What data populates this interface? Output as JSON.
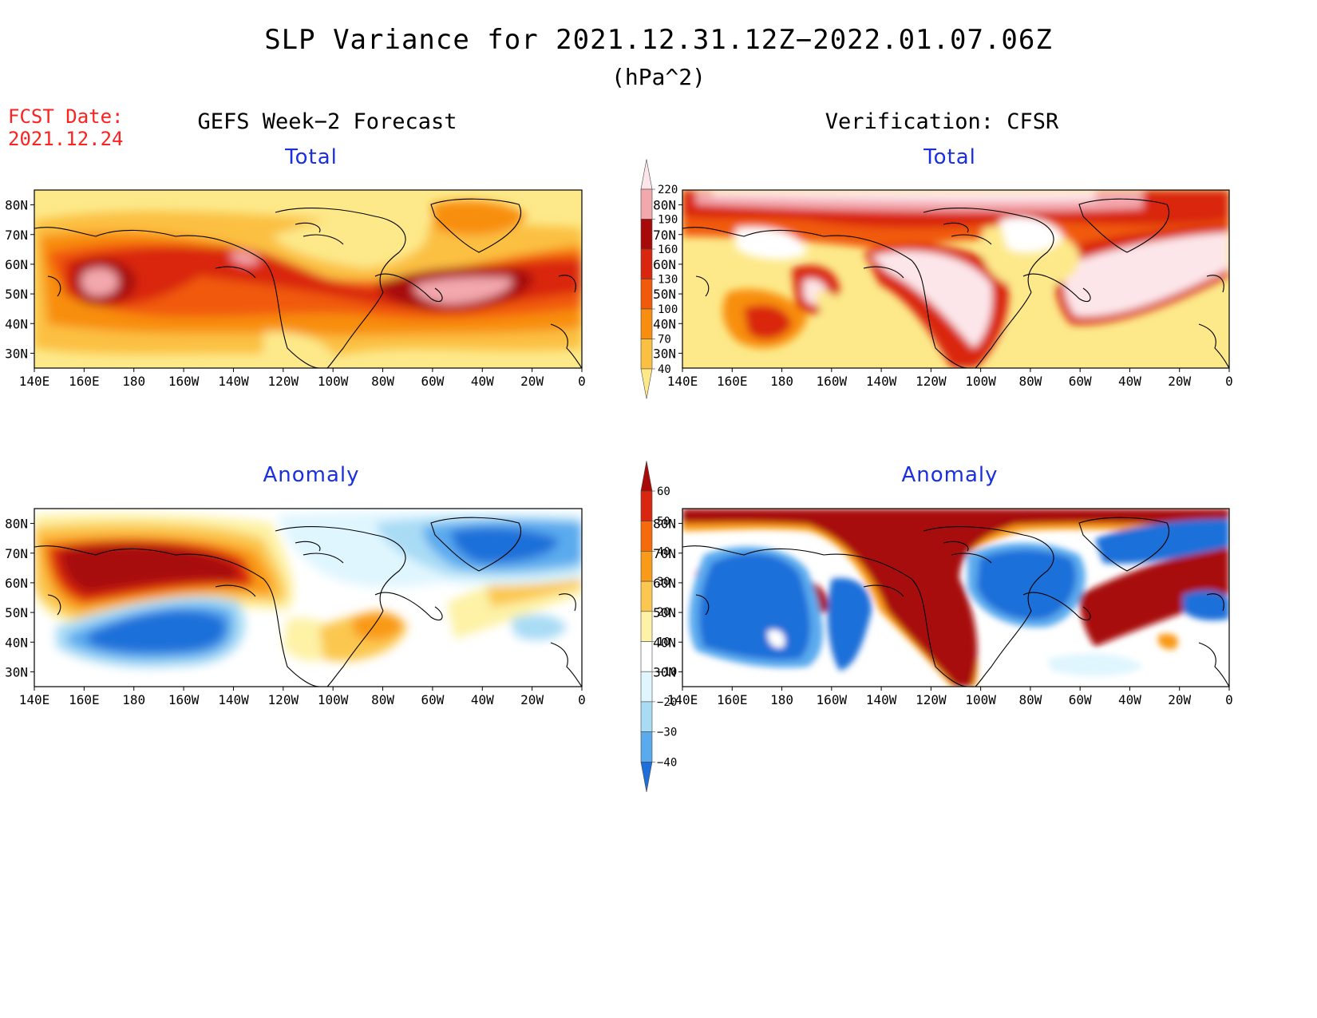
{
  "title": "SLP Variance for 2021.12.31.12Z−2022.01.07.06Z",
  "units": "(hPa^2)",
  "fcst_date": {
    "label": "FCST Date:",
    "value": "2021.12.24"
  },
  "left_header": "GEFS Week−2 Forecast",
  "right_header": "Verification: CFSR",
  "panels": {
    "fcst_total": {
      "subtitle": "Total"
    },
    "ver_total": {
      "subtitle": "Total"
    },
    "fcst_anom": {
      "subtitle": "Anomaly"
    },
    "ver_anom": {
      "subtitle": "Anomaly"
    }
  },
  "axes": {
    "lon_labels": [
      "140E",
      "160E",
      "180",
      "160W",
      "140W",
      "120W",
      "100W",
      "80W",
      "60W",
      "40W",
      "20W",
      "0"
    ],
    "lat_labels": [
      "80N",
      "70N",
      "60N",
      "50N",
      "40N",
      "30N"
    ]
  },
  "total_colorbar": {
    "levels": [
      "40",
      "70",
      "100",
      "130",
      "160",
      "190",
      "220"
    ],
    "colors": [
      "#fde98a",
      "#fbc042",
      "#f88e10",
      "#f15a0a",
      "#d9260f",
      "#a80a0a",
      "#f3a8ad",
      "#fde6ea"
    ]
  },
  "anomaly_colorbar": {
    "levels": [
      "60",
      "50",
      "40",
      "30",
      "20",
      "10",
      "−10",
      "−20",
      "−30",
      "−40"
    ],
    "colors": [
      "#a80a0a",
      "#d9260f",
      "#f56b0c",
      "#f99a18",
      "#fbc750",
      "#fdf2a6",
      "#ffffff",
      "#e0f6fe",
      "#a9dbf5",
      "#5aaaee",
      "#1e6fd9"
    ]
  },
  "chart_data": [
    {
      "type": "heatmap",
      "title": "Total",
      "subtitle": "GEFS Week−2 Forecast",
      "xlim": [
        "140E",
        "0"
      ],
      "ylim": [
        "25N",
        "85N"
      ],
      "features": [
        {
          "name": "West Pacific maximum",
          "lon": "168E",
          "lat": "53N",
          "value": ">190"
        },
        {
          "name": "Gulf of Alaska band",
          "lon": "150W",
          "lat": "58N",
          "value": "160–190"
        },
        {
          "name": "Newfoundland/Atlantic maximum",
          "lon": "60W",
          "lat": "50N",
          "value": ">190"
        },
        {
          "name": "Greenland minimum",
          "lon": "45W",
          "lat": "75N",
          "value": "40–70"
        }
      ]
    },
    {
      "type": "heatmap",
      "title": "Total",
      "subtitle": "Verification: CFSR",
      "xlim": [
        "140E",
        "0"
      ],
      "ylim": [
        "25N",
        "85N"
      ],
      "features": [
        {
          "name": "Arctic maximum",
          "lon": "110W",
          "lat": "83N",
          "value": ">220"
        },
        {
          "name": "Western North America maximum",
          "lon": "118W",
          "lat": "52N",
          "value": ">220"
        },
        {
          "name": "North Atlantic maximum",
          "lon": "35W",
          "lat": "52N",
          "value": ">220"
        },
        {
          "name": "Hudson Bay minimum",
          "lon": "80W",
          "lat": "60N",
          "value": "<40"
        }
      ]
    },
    {
      "type": "heatmap",
      "title": "Anomaly",
      "subtitle": "GEFS Week−2 Forecast",
      "xlim": [
        "140E",
        "0"
      ],
      "ylim": [
        "25N",
        "85N"
      ],
      "features": [
        {
          "name": "Bering/Alaska positive",
          "lon": "175E",
          "lat": "68N",
          "value": ">60"
        },
        {
          "name": "North Pacific negative",
          "lon": "155W",
          "lat": "42N",
          "value": "<−40"
        },
        {
          "name": "Greenland negative",
          "lon": "45W",
          "lat": "72N",
          "value": "−40 to −30"
        },
        {
          "name": "East US positive",
          "lon": "82W",
          "lat": "43N",
          "value": "20–40"
        }
      ]
    },
    {
      "type": "heatmap",
      "title": "Anomaly",
      "subtitle": "Verification: CFSR",
      "xlim": [
        "140E",
        "0"
      ],
      "ylim": [
        "25N",
        "85N"
      ],
      "features": [
        {
          "name": "Arctic and western North America positive",
          "lon": "110W",
          "lat": "60N",
          "value": ">60"
        },
        {
          "name": "North Atlantic positive",
          "lon": "40W",
          "lat": "55N",
          "value": ">60"
        },
        {
          "name": "North Pacific negative",
          "lon": "175E",
          "lat": "50N",
          "value": "<−40"
        },
        {
          "name": "Hudson Bay negative",
          "lon": "82W",
          "lat": "60N",
          "value": "<−40"
        }
      ]
    }
  ]
}
